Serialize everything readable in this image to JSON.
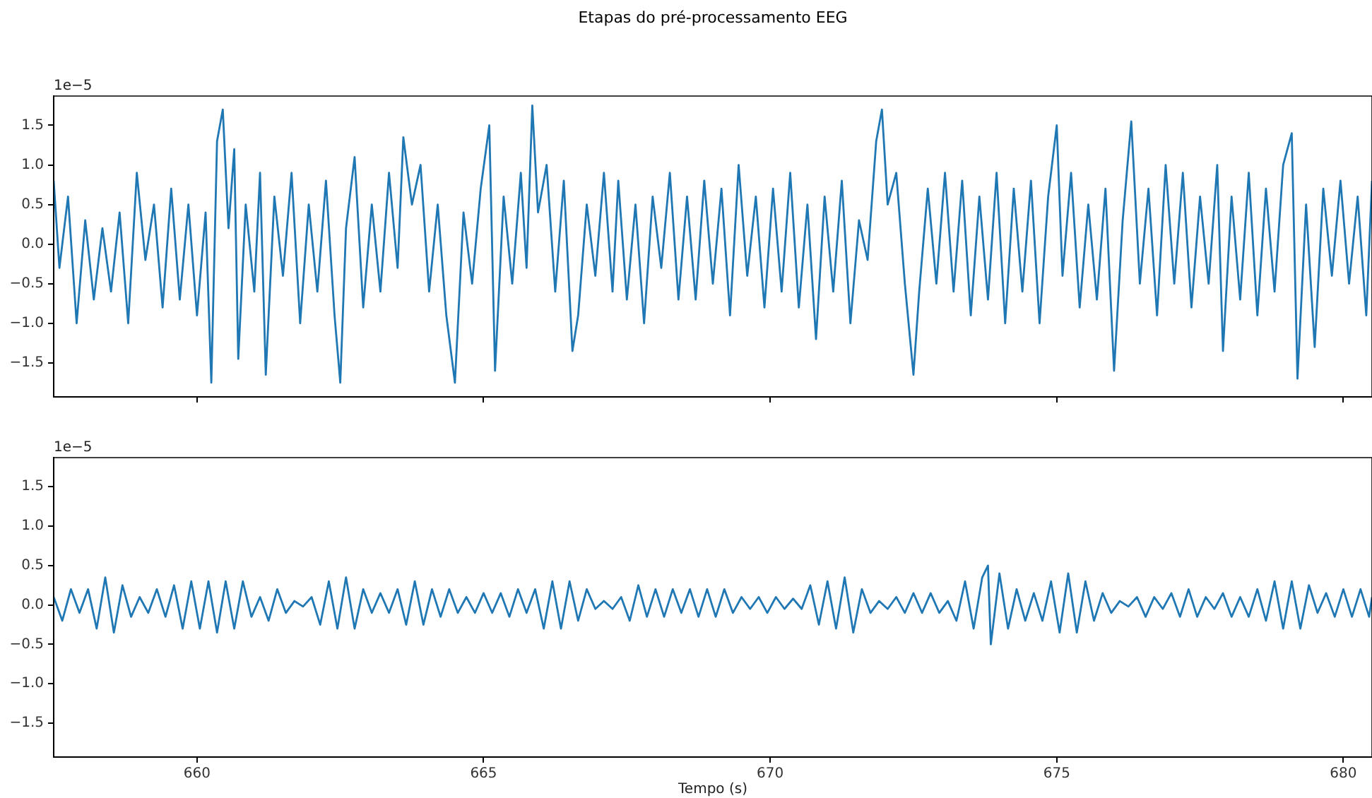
{
  "chart_data": [
    {
      "type": "line",
      "title": "Etapas do pré-processamento EEG",
      "annotations": [
        "1e−5"
      ],
      "xlim": [
        657.5,
        680.5
      ],
      "xticks": [
        660,
        665,
        670,
        675,
        680
      ],
      "ylim": [
        -1.93,
        1.87
      ],
      "yticks": [
        {
          "value": -1.5,
          "label": "−1.5"
        },
        {
          "value": -1,
          "label": "−1.0"
        },
        {
          "value": -0.5,
          "label": "−0.5"
        },
        {
          "value": 0,
          "label": "0.0"
        },
        {
          "value": 0.5,
          "label": "0.5"
        },
        {
          "value": 1,
          "label": "1.0"
        },
        {
          "value": 1.5,
          "label": "1.5"
        }
      ],
      "tick_labels": "y",
      "grid": false,
      "legend": false,
      "marker": "none",
      "line_style": "solid",
      "series": [
        {
          "color": "#1f77b4",
          "x": [
            657.5,
            657.6,
            657.75,
            657.9,
            658.05,
            658.2,
            658.35,
            658.5,
            658.65,
            658.8,
            658.95,
            659.1,
            659.25,
            659.4,
            659.55,
            659.7,
            659.85,
            660.0,
            660.15,
            660.25,
            660.35,
            660.45,
            660.55,
            660.65,
            660.72,
            660.85,
            661.0,
            661.1,
            661.2,
            661.35,
            661.5,
            661.65,
            661.8,
            661.95,
            662.1,
            662.25,
            662.4,
            662.5,
            662.6,
            662.75,
            662.9,
            663.05,
            663.2,
            663.35,
            663.5,
            663.6,
            663.75,
            663.9,
            664.05,
            664.2,
            664.35,
            664.5,
            664.65,
            664.8,
            664.95,
            665.1,
            665.2,
            665.35,
            665.5,
            665.65,
            665.75,
            665.85,
            665.95,
            666.1,
            666.25,
            666.4,
            666.55,
            666.65,
            666.8,
            666.95,
            667.1,
            667.25,
            667.35,
            667.5,
            667.65,
            667.8,
            667.95,
            668.1,
            668.25,
            668.4,
            668.55,
            668.7,
            668.85,
            669.0,
            669.15,
            669.3,
            669.45,
            669.6,
            669.75,
            669.9,
            670.05,
            670.2,
            670.35,
            670.5,
            670.65,
            670.8,
            670.95,
            671.1,
            671.25,
            671.4,
            671.55,
            671.7,
            671.85,
            671.95,
            672.05,
            672.2,
            672.35,
            672.5,
            672.6,
            672.75,
            672.9,
            673.05,
            673.2,
            673.35,
            673.5,
            673.65,
            673.8,
            673.95,
            674.1,
            674.25,
            674.4,
            674.55,
            674.7,
            674.85,
            675.0,
            675.1,
            675.25,
            675.4,
            675.55,
            675.7,
            675.85,
            676.0,
            676.15,
            676.3,
            676.45,
            676.6,
            676.75,
            676.9,
            677.05,
            677.2,
            677.35,
            677.5,
            677.65,
            677.8,
            677.9,
            678.05,
            678.2,
            678.35,
            678.5,
            678.65,
            678.8,
            678.95,
            679.1,
            679.2,
            679.35,
            679.5,
            679.65,
            679.8,
            679.95,
            680.1,
            680.25,
            680.4,
            680.5
          ],
          "values": [
            0.8,
            -0.3,
            0.6,
            -1.0,
            0.3,
            -0.7,
            0.2,
            -0.6,
            0.4,
            -1.0,
            0.9,
            -0.2,
            0.5,
            -0.8,
            0.7,
            -0.7,
            0.5,
            -0.9,
            0.4,
            -1.75,
            1.3,
            1.7,
            0.2,
            1.2,
            -1.45,
            0.5,
            -0.6,
            0.9,
            -1.65,
            0.6,
            -0.4,
            0.9,
            -1.0,
            0.5,
            -0.6,
            0.8,
            -0.9,
            -1.75,
            0.2,
            1.1,
            -0.8,
            0.5,
            -0.6,
            0.9,
            -0.3,
            1.35,
            0.5,
            1.0,
            -0.6,
            0.5,
            -0.9,
            -1.75,
            0.4,
            -0.5,
            0.7,
            1.5,
            -1.6,
            0.6,
            -0.5,
            0.9,
            -0.3,
            1.75,
            0.4,
            1.0,
            -0.6,
            0.8,
            -1.35,
            -0.9,
            0.5,
            -0.4,
            0.9,
            -0.6,
            0.8,
            -0.7,
            0.5,
            -1.0,
            0.6,
            -0.3,
            0.9,
            -0.7,
            0.6,
            -0.7,
            0.8,
            -0.5,
            0.7,
            -0.9,
            1.0,
            -0.4,
            0.6,
            -0.8,
            0.7,
            -0.6,
            0.9,
            -0.8,
            0.5,
            -1.2,
            0.6,
            -0.6,
            0.8,
            -1.0,
            0.3,
            -0.2,
            1.3,
            1.7,
            0.5,
            0.9,
            -0.5,
            -1.65,
            -0.6,
            0.7,
            -0.5,
            0.9,
            -0.6,
            0.8,
            -0.9,
            0.6,
            -0.7,
            0.9,
            -1.0,
            0.7,
            -0.6,
            0.8,
            -1.0,
            0.6,
            1.5,
            -0.4,
            0.9,
            -0.8,
            0.5,
            -0.7,
            0.7,
            -1.6,
            0.3,
            1.55,
            -0.5,
            0.7,
            -0.9,
            1.0,
            -0.5,
            0.9,
            -0.8,
            0.6,
            -0.5,
            1.0,
            -1.35,
            0.6,
            -0.7,
            0.9,
            -0.9,
            0.7,
            -0.6,
            1.0,
            1.4,
            -1.7,
            0.5,
            -1.3,
            0.7,
            -0.4,
            0.8,
            -0.5,
            0.6,
            -0.9,
            0.8
          ]
        }
      ]
    },
    {
      "type": "line",
      "xlabel": "Tempo (s)",
      "annotations": [
        "1e−5"
      ],
      "xlim": [
        657.5,
        680.5
      ],
      "xticks": [
        660,
        665,
        670,
        675,
        680
      ],
      "ylim": [
        -1.93,
        1.87
      ],
      "yticks": [
        {
          "value": -1.5,
          "label": "−1.5"
        },
        {
          "value": -1,
          "label": "−1.0"
        },
        {
          "value": -0.5,
          "label": "−0.5"
        },
        {
          "value": 0,
          "label": "0.0"
        },
        {
          "value": 0.5,
          "label": "0.5"
        },
        {
          "value": 1,
          "label": "1.0"
        },
        {
          "value": 1.5,
          "label": "1.5"
        }
      ],
      "grid": false,
      "legend": false,
      "marker": "none",
      "line_style": "solid",
      "series": [
        {
          "color": "#1f77b4",
          "x": [
            657.5,
            657.65,
            657.8,
            657.95,
            658.1,
            658.25,
            658.4,
            658.55,
            658.7,
            658.85,
            659.0,
            659.15,
            659.3,
            659.45,
            659.6,
            659.75,
            659.9,
            660.05,
            660.2,
            660.35,
            660.5,
            660.65,
            660.8,
            660.95,
            661.1,
            661.25,
            661.4,
            661.55,
            661.7,
            661.85,
            662.0,
            662.15,
            662.3,
            662.45,
            662.6,
            662.75,
            662.9,
            663.05,
            663.2,
            663.35,
            663.5,
            663.65,
            663.8,
            663.95,
            664.1,
            664.25,
            664.4,
            664.55,
            664.7,
            664.85,
            665.0,
            665.15,
            665.3,
            665.45,
            665.6,
            665.75,
            665.9,
            666.05,
            666.2,
            666.35,
            666.5,
            666.65,
            666.8,
            666.95,
            667.1,
            667.25,
            667.4,
            667.55,
            667.7,
            667.85,
            668.0,
            668.15,
            668.3,
            668.45,
            668.6,
            668.75,
            668.9,
            669.05,
            669.2,
            669.35,
            669.5,
            669.65,
            669.8,
            669.95,
            670.1,
            670.25,
            670.4,
            670.55,
            670.7,
            670.85,
            671.0,
            671.15,
            671.3,
            671.45,
            671.6,
            671.75,
            671.9,
            672.05,
            672.2,
            672.35,
            672.5,
            672.65,
            672.8,
            672.95,
            673.1,
            673.25,
            673.4,
            673.55,
            673.7,
            673.8,
            673.85,
            674.0,
            674.15,
            674.3,
            674.45,
            674.6,
            674.75,
            674.9,
            675.05,
            675.2,
            675.35,
            675.5,
            675.65,
            675.8,
            675.95,
            676.1,
            676.25,
            676.4,
            676.55,
            676.7,
            676.85,
            677.0,
            677.15,
            677.3,
            677.45,
            677.6,
            677.75,
            677.9,
            678.05,
            678.2,
            678.35,
            678.5,
            678.65,
            678.8,
            678.95,
            679.1,
            679.25,
            679.4,
            679.55,
            679.7,
            679.85,
            680.0,
            680.15,
            680.3,
            680.45,
            680.5
          ],
          "values": [
            0.1,
            -0.2,
            0.2,
            -0.1,
            0.2,
            -0.3,
            0.35,
            -0.35,
            0.25,
            -0.15,
            0.1,
            -0.1,
            0.2,
            -0.15,
            0.25,
            -0.3,
            0.3,
            -0.3,
            0.3,
            -0.35,
            0.3,
            -0.3,
            0.3,
            -0.15,
            0.1,
            -0.2,
            0.2,
            -0.1,
            0.05,
            -0.02,
            0.1,
            -0.25,
            0.3,
            -0.3,
            0.35,
            -0.3,
            0.2,
            -0.1,
            0.15,
            -0.1,
            0.2,
            -0.25,
            0.3,
            -0.25,
            0.2,
            -0.15,
            0.2,
            -0.1,
            0.1,
            -0.1,
            0.15,
            -0.1,
            0.15,
            -0.15,
            0.2,
            -0.1,
            0.2,
            -0.3,
            0.3,
            -0.3,
            0.3,
            -0.2,
            0.2,
            -0.05,
            0.05,
            -0.05,
            0.1,
            -0.2,
            0.25,
            -0.15,
            0.2,
            -0.15,
            0.2,
            -0.1,
            0.2,
            -0.15,
            0.2,
            -0.15,
            0.2,
            -0.1,
            0.1,
            -0.05,
            0.1,
            -0.1,
            0.1,
            -0.05,
            0.08,
            -0.05,
            0.25,
            -0.25,
            0.3,
            -0.3,
            0.35,
            -0.35,
            0.2,
            -0.1,
            0.05,
            -0.05,
            0.1,
            -0.1,
            0.15,
            -0.1,
            0.15,
            -0.1,
            0.05,
            -0.2,
            0.3,
            -0.3,
            0.35,
            0.5,
            -0.5,
            0.4,
            -0.3,
            0.2,
            -0.2,
            0.15,
            -0.2,
            0.3,
            -0.35,
            0.4,
            -0.35,
            0.3,
            -0.2,
            0.15,
            -0.1,
            0.05,
            -0.02,
            0.1,
            -0.15,
            0.1,
            -0.05,
            0.15,
            -0.15,
            0.2,
            -0.15,
            0.1,
            -0.05,
            0.15,
            -0.15,
            0.1,
            -0.15,
            0.2,
            -0.2,
            0.3,
            -0.3,
            0.3,
            -0.3,
            0.25,
            -0.1,
            0.15,
            -0.15,
            0.2,
            -0.15,
            0.2,
            -0.15,
            0.1
          ]
        }
      ]
    }
  ]
}
